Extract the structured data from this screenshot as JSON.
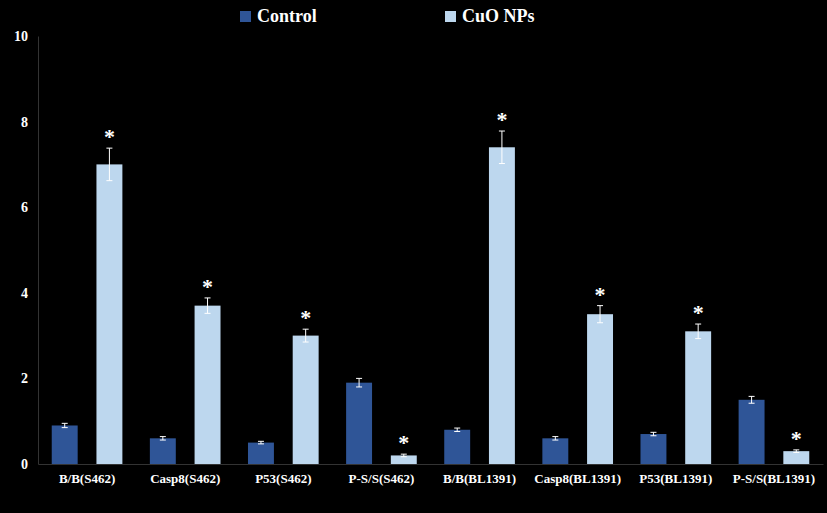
{
  "chart_data": {
    "type": "bar",
    "categories": [
      "B/B(S462)",
      "Casp8(S462)",
      "P53(S462)",
      "P-S/S(S462)",
      "B/B(BL1391)",
      "Casp8(BL1391)",
      "P53(BL1391)",
      "P-S/S(BL1391)"
    ],
    "series": [
      {
        "name": "Control",
        "color": "#2f5597",
        "values": [
          0.9,
          0.6,
          0.5,
          1.9,
          0.8,
          0.6,
          0.7,
          1.5
        ],
        "errors": [
          0.05,
          0.04,
          0.03,
          0.1,
          0.04,
          0.04,
          0.04,
          0.08
        ]
      },
      {
        "name": "CuO NPs",
        "color": "#bdd7ee",
        "values": [
          7.0,
          3.7,
          3.0,
          0.2,
          7.4,
          3.5,
          3.1,
          0.3
        ],
        "errors": [
          0.38,
          0.18,
          0.15,
          0.03,
          0.38,
          0.2,
          0.17,
          0.03
        ],
        "annotations": [
          "*",
          "*",
          "*",
          "*",
          "*",
          "*",
          "*",
          "*"
        ]
      }
    ],
    "ylim": [
      0,
      10
    ],
    "yticks": [
      0,
      2,
      4,
      6,
      8,
      10
    ],
    "grid": false,
    "legend": "top"
  }
}
